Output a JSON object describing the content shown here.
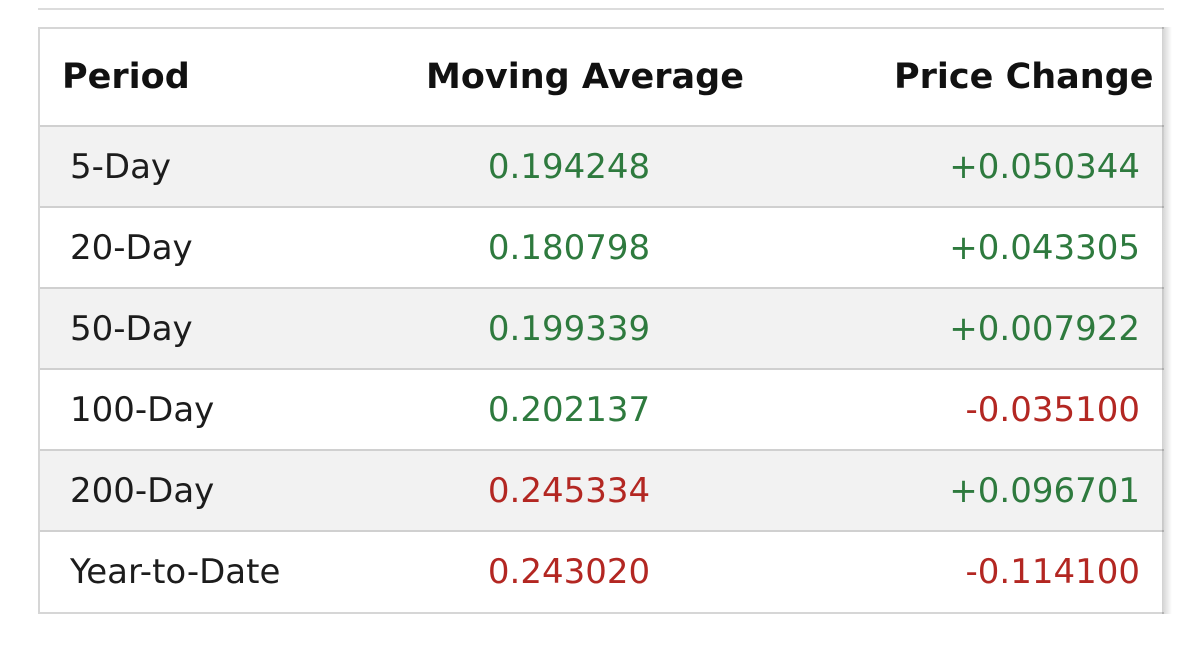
{
  "table": {
    "headers": {
      "period": "Period",
      "moving_average": "Moving Average",
      "price_change": "Price Change"
    },
    "rows": [
      {
        "period": "5-Day",
        "moving_average": "0.194248",
        "ma_trend": "positive",
        "price_change": "+0.050344",
        "pc_trend": "positive"
      },
      {
        "period": "20-Day",
        "moving_average": "0.180798",
        "ma_trend": "positive",
        "price_change": "+0.043305",
        "pc_trend": "positive"
      },
      {
        "period": "50-Day",
        "moving_average": "0.199339",
        "ma_trend": "positive",
        "price_change": "+0.007922",
        "pc_trend": "positive"
      },
      {
        "period": "100-Day",
        "moving_average": "0.202137",
        "ma_trend": "positive",
        "price_change": "-0.035100",
        "pc_trend": "negative"
      },
      {
        "period": "200-Day",
        "moving_average": "0.245334",
        "ma_trend": "negative",
        "price_change": "+0.096701",
        "pc_trend": "positive"
      },
      {
        "period": "Year-to-Date",
        "moving_average": "0.243020",
        "ma_trend": "negative",
        "price_change": "-0.114100",
        "pc_trend": "negative"
      }
    ]
  },
  "colors": {
    "positive": "#2e7a3e",
    "negative": "#b32722",
    "header_text": "#111111",
    "row_stripe": "#f2f2f2",
    "border": "#d0d0d0"
  }
}
